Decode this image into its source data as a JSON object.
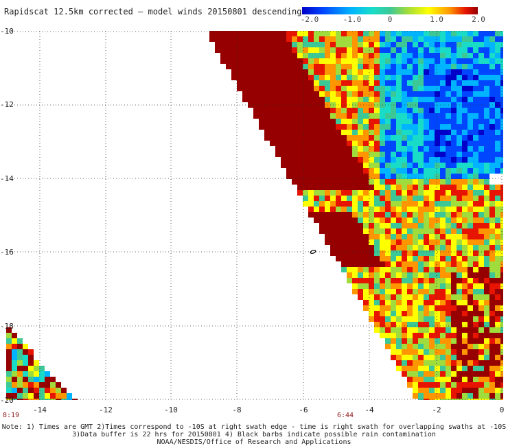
{
  "title": "Rapidscat 12.5km corrected – model winds 20150801 descending",
  "colorbar": {
    "labels": [
      "-2.0",
      "-1.0",
      "0",
      "1.0",
      "2.0"
    ],
    "min": -2.0,
    "max": 2.0,
    "colors": [
      "#0000c8",
      "#0046ff",
      "#00b4ff",
      "#19dcc8",
      "#3cc896",
      "#a0dc3c",
      "#ffff00",
      "#ff9600",
      "#e61400",
      "#960000"
    ]
  },
  "axes": {
    "y_ticks": [
      "-10",
      "-12",
      "-14",
      "-16",
      "-18",
      "-20"
    ],
    "x_ticks": [
      "-14",
      "-12",
      "-10",
      "-8",
      "-6",
      "-4",
      "-2",
      "0"
    ],
    "xlim": [
      -15.3,
      0
    ],
    "ylim": [
      -20,
      -10
    ],
    "grid": "dotted"
  },
  "time_labels": {
    "left": "8:19",
    "right": "6:44"
  },
  "notes": [
    "Note: 1) Times are GMT 2)Times correspond to -10S at right swath edge - time is right swath for overlapping swaths at -10S",
    "3)Data buffer is 22 hrs for 20150801 4) Black barbs indicate possible rain contamination",
    "NOAA/NESDIS/Office of Research and Applications"
  ]
}
